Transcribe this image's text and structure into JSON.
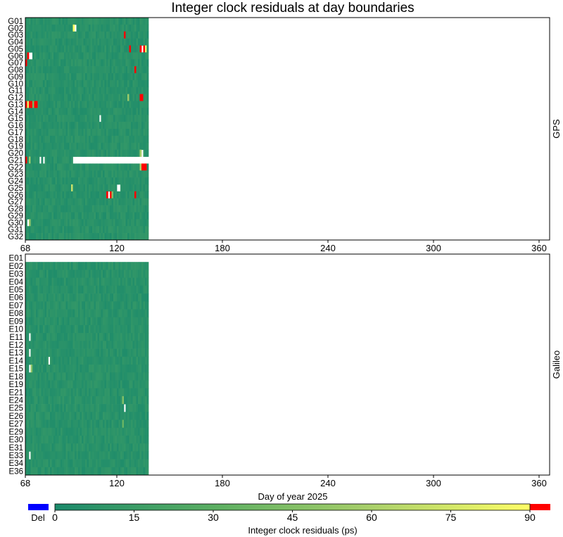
{
  "chart_data": [
    {
      "type": "heatmap",
      "title": "Integer clock residuals at day boundaries",
      "side_label": "GPS",
      "xlim": [
        68,
        366
      ],
      "x_ticks": [
        "68",
        "120",
        "180",
        "240",
        "300",
        "360"
      ],
      "x_tick_values": [
        68,
        120,
        180,
        240,
        300,
        360
      ],
      "data_end_day": 137,
      "satellites": [
        "G01",
        "G02",
        "G03",
        "G04",
        "G05",
        "G06",
        "G07",
        "G08",
        "G09",
        "G10",
        "G11",
        "G12",
        "G13",
        "G14",
        "G15",
        "G16",
        "G17",
        "G18",
        "G19",
        "G20",
        "G21",
        "G22",
        "G23",
        "G24",
        "G25",
        "G26",
        "G27",
        "G28",
        "G29",
        "G30",
        "G31",
        "G32"
      ],
      "typical_residual_ps": 6,
      "notable_cells": [
        {
          "sat": "G02",
          "day": 95,
          "value": 90
        },
        {
          "sat": "G02",
          "day": 96,
          "value": null
        },
        {
          "sat": "G03",
          "day": 124,
          "value": 91
        },
        {
          "sat": "G05",
          "day": 127,
          "value": 92
        },
        {
          "sat": "G05",
          "day": 133,
          "value": 92
        },
        {
          "sat": "G05",
          "day": 134,
          "value": null
        },
        {
          "sat": "G05",
          "day": 135,
          "value": 91
        },
        {
          "sat": "G05",
          "day": 136,
          "value": 80
        },
        {
          "sat": "G06",
          "day": 69,
          "value": 93
        },
        {
          "sat": "G06",
          "day": 70,
          "value": null
        },
        {
          "sat": "G06",
          "day": 71,
          "value": null
        },
        {
          "sat": "G07",
          "day": 68,
          "value": 92
        },
        {
          "sat": "G08",
          "day": 130,
          "value": 91
        },
        {
          "sat": "G12",
          "day": 126,
          "value": 55
        },
        {
          "sat": "G12",
          "day": 133,
          "value": 93
        },
        {
          "sat": "G12",
          "day": 134,
          "value": 92
        },
        {
          "sat": "G13",
          "day": 68,
          "value": 93
        },
        {
          "sat": "G13",
          "day": 69,
          "value": 80
        },
        {
          "sat": "G13",
          "day": 70,
          "value": 93
        },
        {
          "sat": "G13",
          "day": 71,
          "value": 93
        },
        {
          "sat": "G13",
          "day": 72,
          "value": 40
        },
        {
          "sat": "G13",
          "day": 73,
          "value": 92
        },
        {
          "sat": "G13",
          "day": 74,
          "value": 93
        },
        {
          "sat": "G15",
          "day": 110,
          "value": null
        },
        {
          "sat": "G20",
          "day": 133,
          "value": 60
        },
        {
          "sat": "G20",
          "day": 134,
          "value": null
        },
        {
          "sat": "G21",
          "day": 68,
          "value": 93
        },
        {
          "sat": "G21",
          "day": 70,
          "value": 55
        },
        {
          "sat": "G21",
          "day": 76,
          "value": null
        },
        {
          "sat": "G21",
          "day": 78,
          "value": null
        },
        {
          "sat": "G22",
          "day": 133,
          "value": 60
        },
        {
          "sat": "G22",
          "day": 134,
          "value": 92
        },
        {
          "sat": "G22",
          "day": 135,
          "value": 93
        },
        {
          "sat": "G22",
          "day": 136,
          "value": 93
        },
        {
          "sat": "G25",
          "day": 94,
          "value": 70
        },
        {
          "sat": "G25",
          "day": 120,
          "value": null
        },
        {
          "sat": "G25",
          "day": 121,
          "value": null
        },
        {
          "sat": "G26",
          "day": 114,
          "value": 93
        },
        {
          "sat": "G26",
          "day": 115,
          "value": null
        },
        {
          "sat": "G26",
          "day": 116,
          "value": 92
        },
        {
          "sat": "G26",
          "day": 117,
          "value": 45
        },
        {
          "sat": "G26",
          "day": 130,
          "value": 92
        },
        {
          "sat": "G30",
          "day": 69,
          "value": null
        },
        {
          "sat": "G30",
          "day": 70,
          "value": 55
        }
      ],
      "missing_ranges": [
        {
          "sat": "G21",
          "from_day": 95,
          "to_day": 137
        }
      ]
    },
    {
      "type": "heatmap",
      "side_label": "Galileo",
      "xlabel": "Day of year 2025",
      "xlim": [
        68,
        366
      ],
      "x_ticks": [
        "68",
        "120",
        "180",
        "240",
        "300",
        "360"
      ],
      "x_tick_values": [
        68,
        120,
        180,
        240,
        300,
        360
      ],
      "data_end_day": 137,
      "satellites": [
        "E01",
        "E02",
        "E03",
        "E04",
        "E05",
        "E06",
        "E07",
        "E08",
        "E09",
        "E10",
        "E11",
        "E12",
        "E13",
        "E14",
        "E15",
        "E18",
        "E19",
        "E21",
        "E24",
        "E25",
        "E26",
        "E27",
        "E29",
        "E30",
        "E31",
        "E33",
        "E34",
        "E36"
      ],
      "no_data_satellites": [
        "E01"
      ],
      "typical_residual_ps": 6,
      "notable_cells": [
        {
          "sat": "E11",
          "day": 70,
          "value": null
        },
        {
          "sat": "E13",
          "day": 70,
          "value": null
        },
        {
          "sat": "E14",
          "day": 81,
          "value": null
        },
        {
          "sat": "E15",
          "day": 70,
          "value": null
        },
        {
          "sat": "E15",
          "day": 71,
          "value": 50
        },
        {
          "sat": "E24",
          "day": 123,
          "value": 45
        },
        {
          "sat": "E25",
          "day": 124,
          "value": null
        },
        {
          "sat": "E27",
          "day": 123,
          "value": 35
        },
        {
          "sat": "E33",
          "day": 70,
          "value": null
        }
      ],
      "missing_ranges": []
    }
  ],
  "colorbar": {
    "label": "Integer clock residuals (ps)",
    "ticks": [
      "0",
      "15",
      "30",
      "45",
      "60",
      "75",
      "90"
    ],
    "tick_values": [
      0,
      15,
      30,
      45,
      60,
      75,
      90
    ],
    "range": [
      0,
      90
    ],
    "del_label": "Del",
    "del_color": "#0000ff",
    "over_color": "#ff0000",
    "color_stops": [
      "#1b8a6b",
      "#5aae62",
      "#a9d06a",
      "#ffff66"
    ]
  }
}
